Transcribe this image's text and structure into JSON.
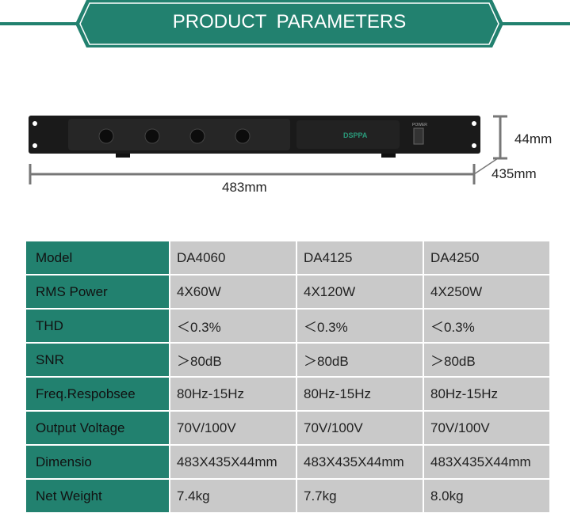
{
  "header": {
    "title": "PRODUCT  PARAMETERS",
    "accent": "#22816f"
  },
  "product_image": {
    "brand_logo": "DSPPA",
    "power_label": "POWER"
  },
  "dimensions": {
    "height": "44mm",
    "depth": "435mm",
    "width": "483mm"
  },
  "table": {
    "rows": [
      {
        "label": "Model",
        "values": [
          "DA4060",
          "DA4125",
          "DA4250"
        ]
      },
      {
        "label": "RMS Power",
        "values": [
          "4X60W",
          "4X120W",
          "4X250W"
        ]
      },
      {
        "label": "THD",
        "values": [
          "＜0.3%",
          "＜0.3%",
          "＜0.3%"
        ]
      },
      {
        "label": "SNR",
        "values": [
          "＞80dB",
          "＞80dB",
          "＞80dB"
        ]
      },
      {
        "label": "Freq.Respobsee",
        "values": [
          "80Hz-15Hz",
          "80Hz-15Hz",
          "80Hz-15Hz"
        ]
      },
      {
        "label": "Output Voltage",
        "values": [
          "70V/100V",
          "70V/100V",
          "70V/100V"
        ]
      },
      {
        "label": "Dimensio",
        "values": [
          "483X435X44mm",
          "483X435X44mm",
          "483X435X44mm"
        ]
      },
      {
        "label": "Net Weight",
        "values": [
          "7.4kg",
          "7.7kg",
          "8.0kg"
        ]
      }
    ]
  }
}
